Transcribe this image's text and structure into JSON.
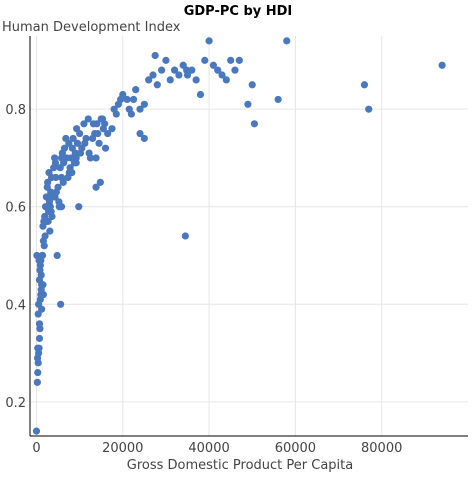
{
  "chart_data": {
    "type": "scatter",
    "title": "GDP-PC by HDI",
    "xlabel": "Gross Domestic Product Per Capita",
    "ylabel": "Human Development Index",
    "xlim": [
      -1500,
      100000
    ],
    "ylim": [
      0.13,
      0.95
    ],
    "xticks": [
      0,
      20000,
      40000,
      60000,
      80000
    ],
    "xtick_labels": [
      "0",
      "20000",
      "40000",
      "60000",
      "80000"
    ],
    "yticks": [
      0.2,
      0.4,
      0.6,
      0.8
    ],
    "ytick_labels": [
      "0.2",
      "0.4",
      "0.6",
      "0.8"
    ],
    "grid": true,
    "marker_color": "#4a78be",
    "x": [
      0,
      200,
      300,
      400,
      500,
      250,
      600,
      700,
      800,
      400,
      500,
      900,
      1000,
      1100,
      1200,
      700,
      800,
      900,
      1000,
      1100,
      1300,
      1400,
      1500,
      1600,
      1200,
      1800,
      2000,
      1500,
      1700,
      1900,
      2100,
      2300,
      2500,
      2800,
      3000,
      3300,
      3500,
      4000,
      4200,
      4400,
      2600,
      2900,
      3100,
      3600,
      4300,
      4500,
      5000,
      5300,
      5500,
      5800,
      6000,
      6300,
      6500,
      6800,
      7000,
      7300,
      7500,
      7800,
      8000,
      8300,
      8500,
      9000,
      9300,
      9500,
      10000,
      10500,
      11000,
      11500,
      12000,
      12500,
      13000,
      13500,
      14000,
      14500,
      15000,
      15500,
      16000,
      12200,
      13800,
      14800,
      15800,
      9800,
      8800,
      7600,
      4800,
      5800,
      3800,
      3200,
      2700,
      18000,
      19000,
      20000,
      21000,
      22000,
      23000,
      24000,
      25000,
      26000,
      27000,
      27500,
      28000,
      29000,
      30000,
      31000,
      32000,
      33000,
      34000,
      35000,
      36000,
      37000,
      38000,
      39000,
      40000,
      41000,
      42000,
      43000,
      44000,
      45000,
      46000,
      47000,
      49000,
      50000,
      50500,
      56000,
      58000,
      76000,
      77000,
      94000,
      34500,
      25000,
      24000,
      22500,
      21500,
      19500,
      18500,
      17500,
      16500,
      14200,
      13200,
      11200,
      10200,
      9200,
      8200,
      6200,
      5200,
      4600,
      3400,
      2400,
      1600,
      600,
      5800,
      9200,
      13800,
      15300,
      34800,
      5600,
      1200,
      700,
      300,
      100
    ],
    "y": [
      0.14,
      0.24,
      0.26,
      0.28,
      0.3,
      0.29,
      0.31,
      0.33,
      0.35,
      0.38,
      0.4,
      0.41,
      0.42,
      0.43,
      0.44,
      0.45,
      0.47,
      0.48,
      0.49,
      0.46,
      0.5,
      0.5,
      0.44,
      0.42,
      0.39,
      0.52,
      0.54,
      0.56,
      0.57,
      0.58,
      0.6,
      0.62,
      0.64,
      0.59,
      0.61,
      0.63,
      0.66,
      0.68,
      0.7,
      0.69,
      0.65,
      0.67,
      0.55,
      0.58,
      0.62,
      0.66,
      0.64,
      0.6,
      0.68,
      0.7,
      0.71,
      0.69,
      0.72,
      0.74,
      0.7,
      0.66,
      0.73,
      0.68,
      0.7,
      0.72,
      0.74,
      0.71,
      0.76,
      0.73,
      0.75,
      0.72,
      0.77,
      0.74,
      0.78,
      0.7,
      0.74,
      0.75,
      0.77,
      0.73,
      0.78,
      0.76,
      0.72,
      0.71,
      0.64,
      0.65,
      0.77,
      0.6,
      0.69,
      0.67,
      0.5,
      0.66,
      0.62,
      0.6,
      0.57,
      0.8,
      0.81,
      0.83,
      0.82,
      0.79,
      0.84,
      0.75,
      0.74,
      0.86,
      0.87,
      0.91,
      0.85,
      0.88,
      0.9,
      0.86,
      0.88,
      0.87,
      0.89,
      0.87,
      0.88,
      0.86,
      0.83,
      0.9,
      0.94,
      0.89,
      0.88,
      0.87,
      0.86,
      0.9,
      0.88,
      0.9,
      0.81,
      0.85,
      0.77,
      0.82,
      0.94,
      0.85,
      0.8,
      0.89,
      0.54,
      0.81,
      0.8,
      0.82,
      0.8,
      0.82,
      0.79,
      0.76,
      0.75,
      0.75,
      0.77,
      0.73,
      0.71,
      0.69,
      0.67,
      0.65,
      0.61,
      0.63,
      0.59,
      0.57,
      0.53,
      0.49,
      0.6,
      0.7,
      0.7,
      0.78,
      0.88,
      0.4,
      0.42,
      0.36,
      0.31,
      0.5
    ]
  }
}
